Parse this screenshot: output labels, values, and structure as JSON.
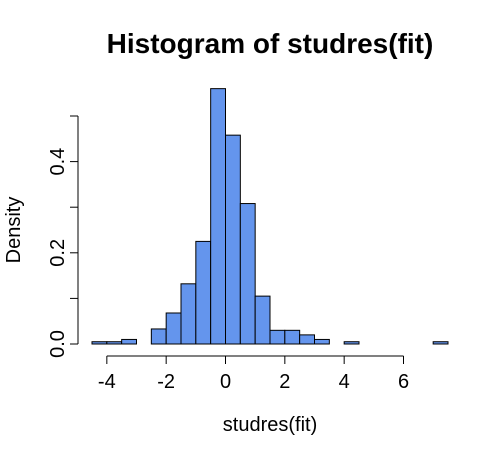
{
  "chart_data": {
    "type": "bar",
    "title": "Histogram of studres(fit)",
    "xlabel": "studres(fit)",
    "ylabel": "Density",
    "xlim": [
      -4.5,
      7.5
    ],
    "ylim": [
      0,
      0.5
    ],
    "x_ticks": [
      -4,
      -2,
      0,
      2,
      4,
      6
    ],
    "x_tick_labels": [
      "-4",
      "-2",
      "0",
      "2",
      "4",
      "6"
    ],
    "y_ticks": [
      0.0,
      0.2,
      0.4
    ],
    "y_tick_labels": [
      "0.0",
      "0.2",
      "0.4"
    ],
    "bin_width": 0.5,
    "bin_starts": [
      -4.5,
      -4.0,
      -3.5,
      -3.0,
      -2.5,
      -2.0,
      -1.5,
      -1.0,
      -0.5,
      0.0,
      0.5,
      1.0,
      1.5,
      2.0,
      2.5,
      3.0,
      3.5,
      4.0,
      4.5,
      5.0,
      5.5,
      6.0,
      6.5,
      7.0
    ],
    "values": [
      0.005,
      0.005,
      0.01,
      0.0,
      0.033,
      0.068,
      0.132,
      0.225,
      0.56,
      0.458,
      0.308,
      0.105,
      0.03,
      0.03,
      0.02,
      0.01,
      0.0,
      0.005,
      0.0,
      0.0,
      0.0,
      0.0,
      0.0,
      0.005
    ],
    "bar_color": "#6495ED",
    "grid": false
  }
}
